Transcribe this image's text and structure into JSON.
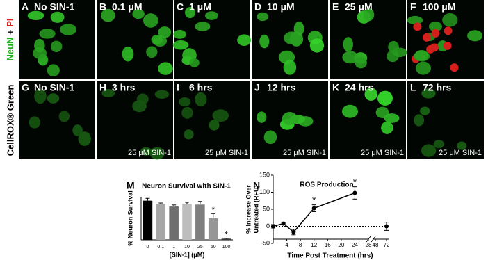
{
  "row_labels": {
    "top": {
      "neun": "NeuN",
      "plus": "+",
      "pi": "PI"
    },
    "bottom": "CellROX® Green"
  },
  "panels": [
    {
      "letter": "A",
      "label": "No SIN-1"
    },
    {
      "letter": "B",
      "label": "0.1 μM"
    },
    {
      "letter": "C",
      "label": "1 μM"
    },
    {
      "letter": "D",
      "label": "10 μM"
    },
    {
      "letter": "E",
      "label": "25 μM"
    },
    {
      "letter": "F",
      "label": "100 μM"
    },
    {
      "letter": "G",
      "label": "No SIN-1"
    },
    {
      "letter": "H",
      "label": "3 hrs",
      "caption": "25 μM SIN-1"
    },
    {
      "letter": "I",
      "label": "6 hrs",
      "caption": "25 μM SIN-1"
    },
    {
      "letter": "J",
      "label": "12 hrs",
      "caption": "25 μM SIN-1"
    },
    {
      "letter": "K",
      "label": "24 hrs",
      "caption": "25 μM SIN-1"
    },
    {
      "letter": "L",
      "label": "72 hrs",
      "caption": "25 μM SIN-1"
    }
  ],
  "chart_data": [
    {
      "type": "bar",
      "panel": "M",
      "title": "Neuron Survival with SIN-1",
      "ylabel": "% Neuron Survival",
      "xlabel": "[SIN-1] (μM)",
      "categories": [
        "0",
        "0.1",
        "1",
        "10",
        "25",
        "50",
        "100"
      ],
      "values": [
        100,
        92,
        85,
        92,
        90,
        55,
        3
      ],
      "errors": [
        6,
        2,
        4,
        4,
        8,
        12,
        1
      ],
      "colors": [
        "#000000",
        "#a6a6a6",
        "#6e6e6e",
        "#bdbdbd",
        "#7f7f7f",
        "#969696",
        "#3a3a3a"
      ],
      "annotations": [
        null,
        null,
        null,
        null,
        null,
        "*",
        "*"
      ],
      "ylim": [
        0,
        110
      ]
    },
    {
      "type": "line",
      "panel": "N",
      "title": "ROS Production",
      "ylabel": [
        "% Increase Over",
        "Untreated (RFU)"
      ],
      "xlabel": "Time Post Treatment (hrs)",
      "x": [
        0,
        3,
        6,
        12,
        24,
        72
      ],
      "values": [
        0,
        8,
        -17,
        53,
        98,
        0
      ],
      "errors": [
        5,
        3,
        8,
        10,
        18,
        12
      ],
      "annotations": [
        null,
        null,
        null,
        "*",
        "*",
        null
      ],
      "color": "#000000",
      "xlim": [
        0,
        72
      ],
      "xbreak": [
        28,
        48
      ],
      "xticks": [
        4,
        8,
        12,
        16,
        20,
        24,
        28,
        48,
        72
      ],
      "ylim": [
        -50,
        150
      ],
      "yticks": [
        -50,
        0,
        50,
        100,
        150
      ],
      "zero_line": true
    }
  ]
}
